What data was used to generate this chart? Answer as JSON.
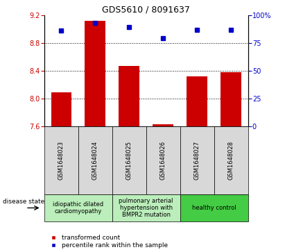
{
  "title": "GDS5610 / 8091637",
  "samples": [
    "GSM1648023",
    "GSM1648024",
    "GSM1648025",
    "GSM1648026",
    "GSM1648027",
    "GSM1648028"
  ],
  "bar_values": [
    8.09,
    9.12,
    8.47,
    7.63,
    8.32,
    8.38
  ],
  "dot_values": [
    86,
    93,
    89,
    79,
    87,
    87
  ],
  "ylim_left": [
    7.6,
    9.2
  ],
  "ylim_right": [
    0,
    100
  ],
  "yticks_left": [
    7.6,
    8.0,
    8.4,
    8.8,
    9.2
  ],
  "yticks_right": [
    0,
    25,
    50,
    75,
    100
  ],
  "bar_color": "#cc0000",
  "dot_color": "#0000cc",
  "bar_width": 0.6,
  "group_labels": [
    "idiopathic dilated\ncardiomyopathy",
    "pulmonary arterial\nhypertension with\nBMPR2 mutation",
    "healthy control"
  ],
  "group_ranges": [
    [
      0,
      1
    ],
    [
      2,
      3
    ],
    [
      4,
      5
    ]
  ],
  "group_bg": [
    "#bbeebb",
    "#bbeebb",
    "#44cc44"
  ],
  "legend_bar_label": "transformed count",
  "legend_dot_label": "percentile rank within the sample",
  "disease_state_label": "disease state",
  "bar_color_red": "#cc0000",
  "dot_color_blue": "#0000cc",
  "sample_bg_color": "#d8d8d8",
  "title_fontsize": 9,
  "tick_fontsize": 7,
  "sample_fontsize": 6,
  "disease_fontsize": 6,
  "legend_fontsize": 6.5
}
